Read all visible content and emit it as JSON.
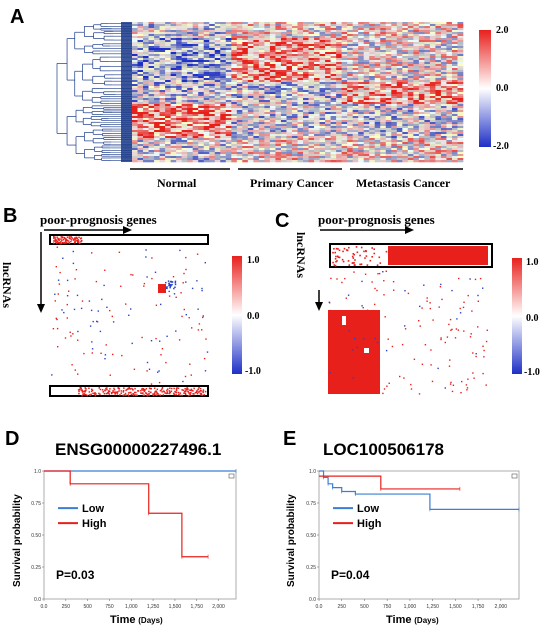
{
  "panels": {
    "A": {
      "label": "A",
      "groups": [
        "Normal",
        "Primary Cancer",
        "Metastasis Cancer"
      ],
      "colorbar": {
        "max": "2.0",
        "mid": "0.0",
        "min": "-2.0"
      }
    },
    "B": {
      "label": "B",
      "x_label": "poor-prognosis genes",
      "y_label": "lncRNAs",
      "colorbar": {
        "max": "1.0",
        "mid": "0.0",
        "min": "-1.0"
      }
    },
    "C": {
      "label": "C",
      "x_label": "poor-prognosis genes",
      "y_label": "lncRNAs",
      "colorbar": {
        "max": "1.0",
        "mid": "0.0",
        "min": "-1.0"
      }
    },
    "D": {
      "label": "D",
      "title": "ENSG00000227496.1",
      "y_label": "Survival probability",
      "x_label": "Time",
      "x_unit": "(Days)",
      "legend": {
        "low": "Low",
        "high": "High"
      },
      "p_value": "P=0.03",
      "y_ticks": [
        "0.0",
        "0.25",
        "0.50",
        "0.75",
        "1.0"
      ],
      "x_ticks": [
        "0.0",
        "250",
        "500",
        "750",
        "1,000",
        "1,250",
        "1,500",
        "1,750",
        "2,000"
      ]
    },
    "E": {
      "label": "E",
      "title": "LOC100506178",
      "y_label": "Survival probability",
      "x_label": "Time",
      "x_unit": "(Days)",
      "legend": {
        "low": "Low",
        "high": "High"
      },
      "p_value": "P=0.04",
      "y_ticks": [
        "0.0",
        "0.25",
        "0.50",
        "0.75",
        "1.0"
      ],
      "x_ticks": [
        "0.0",
        "250",
        "500",
        "750",
        "1,000",
        "1,250",
        "1,500",
        "1,750",
        "2,000"
      ]
    }
  },
  "colors": {
    "red": "#e8201c",
    "blue": "#2244cc",
    "km_low": "#3a7fd5",
    "km_high": "#e8201c"
  },
  "chart_data": [
    {
      "type": "line",
      "title": "ENSG00000227496.1",
      "xlabel": "Time (Days)",
      "ylabel": "Survival probability",
      "xlim": [
        0,
        2200
      ],
      "ylim": [
        0,
        1.0
      ],
      "series": [
        {
          "name": "Low",
          "x": [
            0,
            2200
          ],
          "y": [
            1.0,
            1.0
          ]
        },
        {
          "name": "High",
          "x": [
            0,
            300,
            1200,
            1580,
            1880
          ],
          "y": [
            1.0,
            0.9,
            0.67,
            0.33,
            0.33
          ]
        }
      ]
    },
    {
      "type": "line",
      "title": "LOC100506178",
      "xlabel": "Time (Days)",
      "ylabel": "Survival probability",
      "xlim": [
        0,
        2200
      ],
      "ylim": [
        0,
        1.0
      ],
      "series": [
        {
          "name": "Low",
          "x": [
            0,
            50,
            100,
            150,
            250,
            400,
            1220,
            2200
          ],
          "y": [
            1.0,
            0.95,
            0.9,
            0.87,
            0.84,
            0.82,
            0.7,
            0.7
          ]
        },
        {
          "name": "High",
          "x": [
            0,
            680,
            1550
          ],
          "y": [
            0.96,
            0.86,
            0.86
          ]
        }
      ]
    }
  ]
}
